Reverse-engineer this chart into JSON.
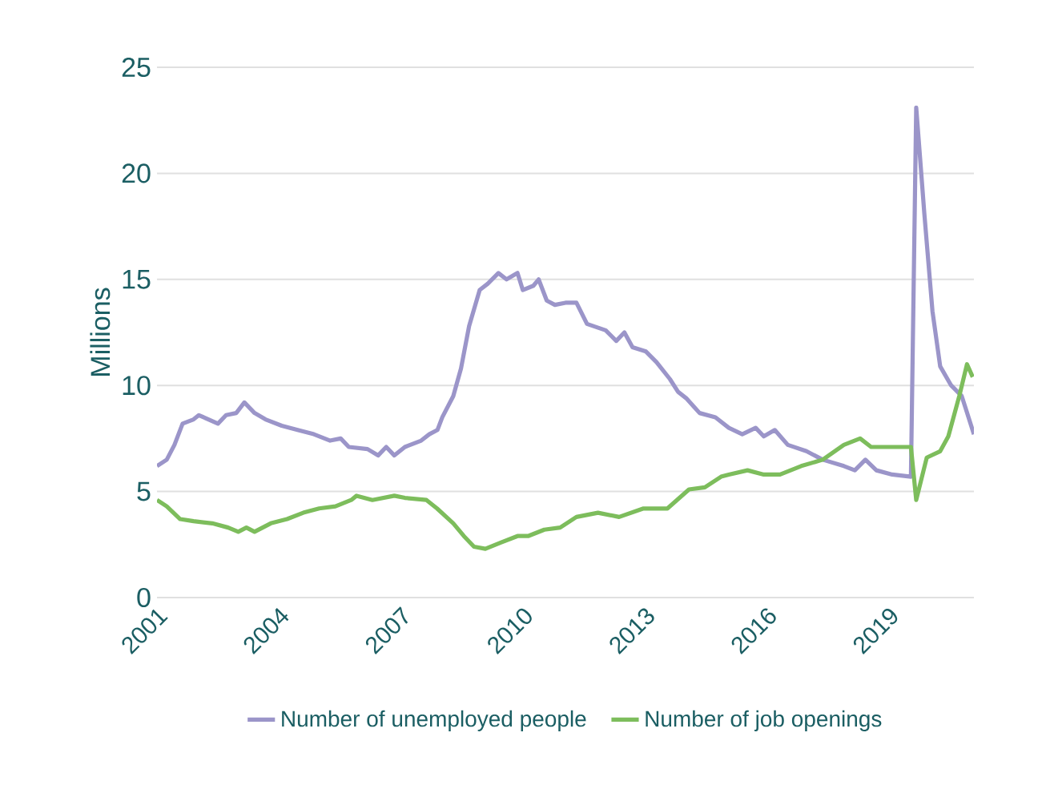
{
  "chart_data": {
    "type": "line",
    "ylabel": "Millions",
    "xlim": [
      2001,
      2021.1
    ],
    "ylim": [
      0,
      25
    ],
    "xticks": [
      2001,
      2004,
      2007,
      2010,
      2013,
      2016,
      2019
    ],
    "yticks": [
      0,
      5,
      10,
      15,
      20,
      25
    ],
    "grid": "y",
    "legend": "bottom",
    "marker": "none",
    "line_style": "solid",
    "series": [
      {
        "name": "Number of unemployed people",
        "color": "#9b95c9",
        "x": [
          2001.0,
          2001.24,
          2001.43,
          2001.63,
          2001.9,
          2002.03,
          2002.5,
          2002.7,
          2002.95,
          2003.15,
          2003.4,
          2003.67,
          2004.07,
          2004.46,
          2004.86,
          2005.26,
          2005.52,
          2005.72,
          2006.18,
          2006.44,
          2006.64,
          2006.84,
          2007.1,
          2007.5,
          2007.7,
          2007.9,
          2008.02,
          2008.29,
          2008.48,
          2008.68,
          2008.94,
          2009.14,
          2009.4,
          2009.6,
          2009.87,
          2010.0,
          2010.26,
          2010.39,
          2010.59,
          2010.79,
          2011.05,
          2011.32,
          2011.58,
          2012.04,
          2012.3,
          2012.5,
          2012.7,
          2013.03,
          2013.29,
          2013.62,
          2013.82,
          2014.02,
          2014.35,
          2014.74,
          2015.07,
          2015.4,
          2015.73,
          2015.93,
          2016.2,
          2016.52,
          2016.98,
          2017.38,
          2017.9,
          2018.17,
          2018.43,
          2018.7,
          2019.09,
          2019.55,
          2019.68,
          2019.88,
          2020.08,
          2020.27,
          2020.54,
          2020.8,
          2021.1
        ],
        "values": [
          6.2,
          6.5,
          7.2,
          8.2,
          8.4,
          8.6,
          8.2,
          8.6,
          8.7,
          9.2,
          8.7,
          8.4,
          8.1,
          7.9,
          7.7,
          7.4,
          7.5,
          7.1,
          7.0,
          6.7,
          7.1,
          6.7,
          7.1,
          7.4,
          7.7,
          7.9,
          8.5,
          9.5,
          10.8,
          12.8,
          14.5,
          14.8,
          15.3,
          15.0,
          15.3,
          14.5,
          14.7,
          15.0,
          14.0,
          13.8,
          13.9,
          13.9,
          12.9,
          12.6,
          12.1,
          12.5,
          11.8,
          11.6,
          11.1,
          10.3,
          9.7,
          9.4,
          8.7,
          8.5,
          8.0,
          7.7,
          8.0,
          7.6,
          7.9,
          7.2,
          6.9,
          6.5,
          6.2,
          6.0,
          6.5,
          6.0,
          5.8,
          5.7,
          23.1,
          18.1,
          13.5,
          10.9,
          10.0,
          9.5,
          7.7
        ]
      },
      {
        "name": "Number of job openings",
        "color": "#7dbd5c",
        "x": [
          2001.0,
          2001.24,
          2001.57,
          2001.9,
          2002.36,
          2002.75,
          2003.0,
          2003.2,
          2003.4,
          2003.8,
          2004.2,
          2004.6,
          2004.99,
          2005.39,
          2005.78,
          2005.91,
          2006.3,
          2006.84,
          2007.1,
          2007.63,
          2007.89,
          2008.29,
          2008.55,
          2008.8,
          2009.08,
          2009.47,
          2009.87,
          2010.13,
          2010.53,
          2010.92,
          2011.32,
          2011.85,
          2012.37,
          2012.97,
          2013.56,
          2014.09,
          2014.48,
          2014.88,
          2015.07,
          2015.53,
          2015.93,
          2016.33,
          2016.85,
          2017.38,
          2017.9,
          2018.3,
          2018.57,
          2019.09,
          2019.55,
          2019.68,
          2019.94,
          2020.27,
          2020.47,
          2020.74,
          2020.93,
          2021.07
        ],
        "values": [
          4.6,
          4.3,
          3.7,
          3.6,
          3.5,
          3.3,
          3.1,
          3.3,
          3.1,
          3.5,
          3.7,
          4.0,
          4.2,
          4.3,
          4.6,
          4.8,
          4.6,
          4.8,
          4.7,
          4.6,
          4.2,
          3.5,
          2.9,
          2.4,
          2.3,
          2.6,
          2.9,
          2.9,
          3.2,
          3.3,
          3.8,
          4.0,
          3.8,
          4.2,
          4.2,
          5.1,
          5.2,
          5.7,
          5.8,
          6.0,
          5.8,
          5.8,
          6.2,
          6.5,
          7.2,
          7.5,
          7.1,
          7.1,
          7.1,
          4.6,
          6.6,
          6.9,
          7.6,
          9.5,
          11.0,
          10.4
        ]
      }
    ]
  }
}
